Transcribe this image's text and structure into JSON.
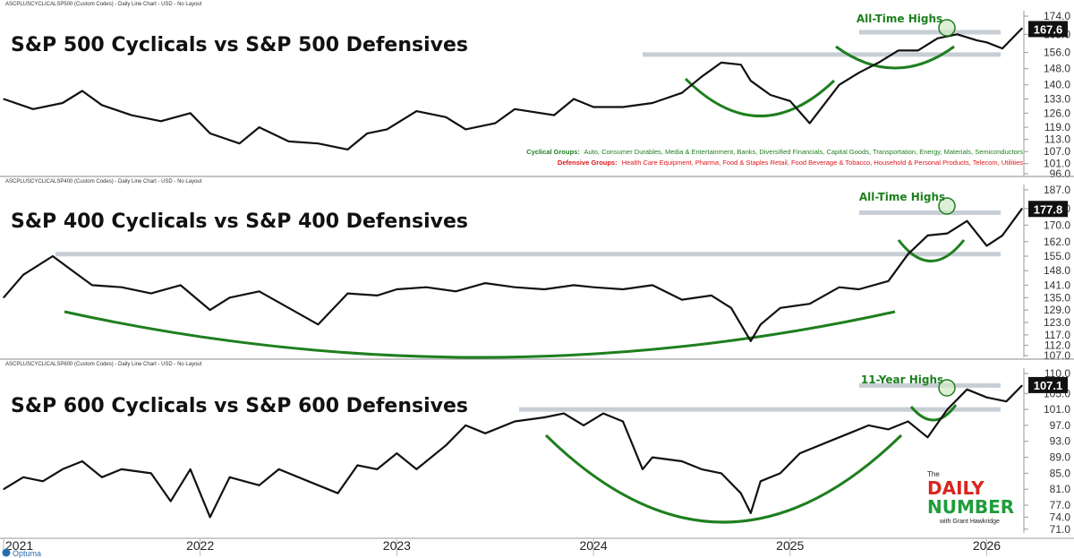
{
  "colors": {
    "line": "#111111",
    "resistance": "#c8ced6",
    "annotation_green": "#1e7f1e",
    "circle_fill": "#cfe8c4",
    "last_value_bg": "#111111",
    "cyclical_label": "#1e7f1e",
    "defensive_label": "#e0161b",
    "logo_red": "#d7261e",
    "logo_green": "#1f9d3a",
    "optuma_blue": "#2b6cb0"
  },
  "x_axis": {
    "years": [
      "2021",
      "2022",
      "2023",
      "2024",
      "2025",
      "2026"
    ]
  },
  "logo": {
    "the": "The",
    "daily": "DAILY",
    "number": "NUMBER",
    "byline": "with Grant Hawkridge"
  },
  "optuma": "Optuma",
  "groups": {
    "cyclical_label": "Cyclical Groups:",
    "cyclical_list": "Auto, Consumer Durables, Media & Entertainment, Banks, Diversified Financials, Capital Goods, Transportation, Energy, Materials, Semiconductors",
    "defensive_label": "Defensive Groups:",
    "defensive_list": "Health Care Equipment, Pharma, Food & Staples Retail, Food Beverage & Tobacco, Household & Personal Products, Telecom, Utilities"
  },
  "chart_data": [
    {
      "type": "line",
      "header": "ASCPLUSCYCLICALSP500 (Custom Codes) - Daily Line Chart - USD - No Layout",
      "title": "S&P 500 Cyclicals vs S&P 500 Defensives",
      "annotation": "All-Time Highs",
      "last_value": "167.6",
      "y_ticks": [
        "174.0",
        "165.0",
        "156.0",
        "148.0",
        "140.0",
        "133.0",
        "126.0",
        "119.0",
        "113.0",
        "107.0",
        "101.0",
        "96.0"
      ],
      "ylim": [
        96,
        174
      ],
      "resistance": [
        155,
        166
      ],
      "x": [
        2021.0,
        2021.15,
        2021.3,
        2021.4,
        2021.5,
        2021.65,
        2021.8,
        2021.95,
        2022.05,
        2022.2,
        2022.3,
        2022.45,
        2022.6,
        2022.75,
        2022.85,
        2022.95,
        2023.1,
        2023.25,
        2023.35,
        2023.5,
        2023.6,
        2023.8,
        2023.9,
        2024.0,
        2024.15,
        2024.3,
        2024.45,
        2024.55,
        2024.65,
        2024.75,
        2024.8,
        2024.9,
        2025.0,
        2025.1,
        2025.25,
        2025.35,
        2025.45,
        2025.55,
        2025.65,
        2025.75,
        2025.85,
        2025.95,
        2026.0,
        2026.08,
        2026.18
      ],
      "values": [
        133,
        128,
        131,
        137,
        130,
        125,
        122,
        126,
        116,
        111,
        119,
        112,
        111,
        108,
        116,
        118,
        127,
        124,
        118,
        121,
        128,
        125,
        133,
        129,
        129,
        131,
        136,
        144,
        151,
        150,
        142,
        135,
        132,
        121,
        140,
        146,
        151,
        157,
        157,
        163,
        165,
        162,
        161,
        158,
        168
      ]
    },
    {
      "type": "line",
      "header": "ASCPLUSCYCLICALSP400 (Custom Codes) - Daily Line Chart - USD - No Layout",
      "title": "S&P 400 Cyclicals vs S&P 400 Defensives",
      "annotation": "All-Time Highs",
      "last_value": "177.8",
      "y_ticks": [
        "187.0",
        "178.0",
        "170.0",
        "162.0",
        "155.0",
        "148.0",
        "141.0",
        "135.0",
        "129.0",
        "123.0",
        "117.0",
        "112.0",
        "107.0"
      ],
      "ylim": [
        107,
        187
      ],
      "resistance": [
        156,
        176
      ],
      "x": [
        2021.0,
        2021.1,
        2021.25,
        2021.35,
        2021.45,
        2021.6,
        2021.75,
        2021.9,
        2022.05,
        2022.15,
        2022.3,
        2022.45,
        2022.6,
        2022.75,
        2022.9,
        2023.0,
        2023.15,
        2023.3,
        2023.45,
        2023.6,
        2023.75,
        2023.9,
        2024.0,
        2024.15,
        2024.3,
        2024.45,
        2024.6,
        2024.7,
        2024.8,
        2024.85,
        2024.95,
        2025.1,
        2025.25,
        2025.35,
        2025.5,
        2025.6,
        2025.7,
        2025.8,
        2025.9,
        2026.0,
        2026.08,
        2026.18
      ],
      "values": [
        135,
        146,
        155,
        148,
        141,
        140,
        137,
        141,
        129,
        135,
        138,
        130,
        122,
        137,
        136,
        139,
        140,
        138,
        142,
        140,
        139,
        141,
        140,
        139,
        141,
        134,
        136,
        130,
        114,
        122,
        130,
        132,
        140,
        139,
        143,
        156,
        165,
        166,
        172,
        160,
        165,
        178
      ]
    },
    {
      "type": "line",
      "header": "ASCPLUSCYCLICALSP600 (Custom Codes) - Daily Line Chart - USD - No Layout",
      "title": "S&P 600 Cyclicals vs S&P 600 Defensives",
      "annotation": "11-Year Highs",
      "last_value": "107.1",
      "y_ticks": [
        "110.0",
        "105.0",
        "101.0",
        "97.0",
        "93.0",
        "89.0",
        "85.0",
        "81.0",
        "77.0",
        "74.0",
        "71.0"
      ],
      "ylim": [
        70.5,
        110
      ],
      "resistance": [
        101,
        107
      ],
      "x": [
        2021.0,
        2021.1,
        2021.2,
        2021.3,
        2021.4,
        2021.5,
        2021.6,
        2021.75,
        2021.85,
        2021.95,
        2022.05,
        2022.15,
        2022.3,
        2022.4,
        2022.55,
        2022.7,
        2022.8,
        2022.9,
        2023.0,
        2023.1,
        2023.25,
        2023.35,
        2023.45,
        2023.6,
        2023.75,
        2023.85,
        2023.95,
        2024.05,
        2024.15,
        2024.25,
        2024.3,
        2024.45,
        2024.55,
        2024.65,
        2024.75,
        2024.8,
        2024.85,
        2024.95,
        2025.05,
        2025.2,
        2025.3,
        2025.4,
        2025.5,
        2025.6,
        2025.7,
        2025.8,
        2025.9,
        2026.0,
        2026.1,
        2026.18
      ],
      "values": [
        81,
        84,
        83,
        86,
        88,
        84,
        86,
        85,
        78,
        86,
        74,
        84,
        82,
        86,
        83,
        80,
        87,
        86,
        90,
        86,
        92,
        97,
        95,
        98,
        99,
        100,
        97,
        100,
        98,
        86,
        89,
        88,
        86,
        85,
        80,
        75,
        83,
        85,
        90,
        93,
        95,
        97,
        96,
        98,
        94,
        101,
        106,
        104,
        103,
        107
      ]
    }
  ]
}
